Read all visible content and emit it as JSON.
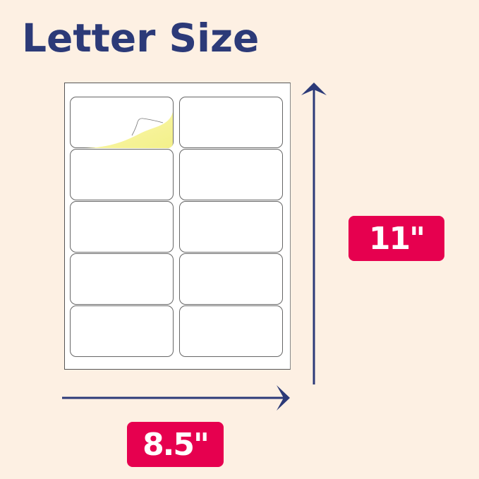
{
  "title": "Letter Size",
  "dimensions": {
    "height": "11\"",
    "width": "8.5\""
  },
  "sheet": {
    "columns": 2,
    "rows": 5,
    "peeled_label_color": "#f3f08a"
  },
  "colors": {
    "title": "#2c3a78",
    "arrow": "#2c3a78",
    "badge": "#e6004f",
    "background": "#fdf0e3"
  }
}
